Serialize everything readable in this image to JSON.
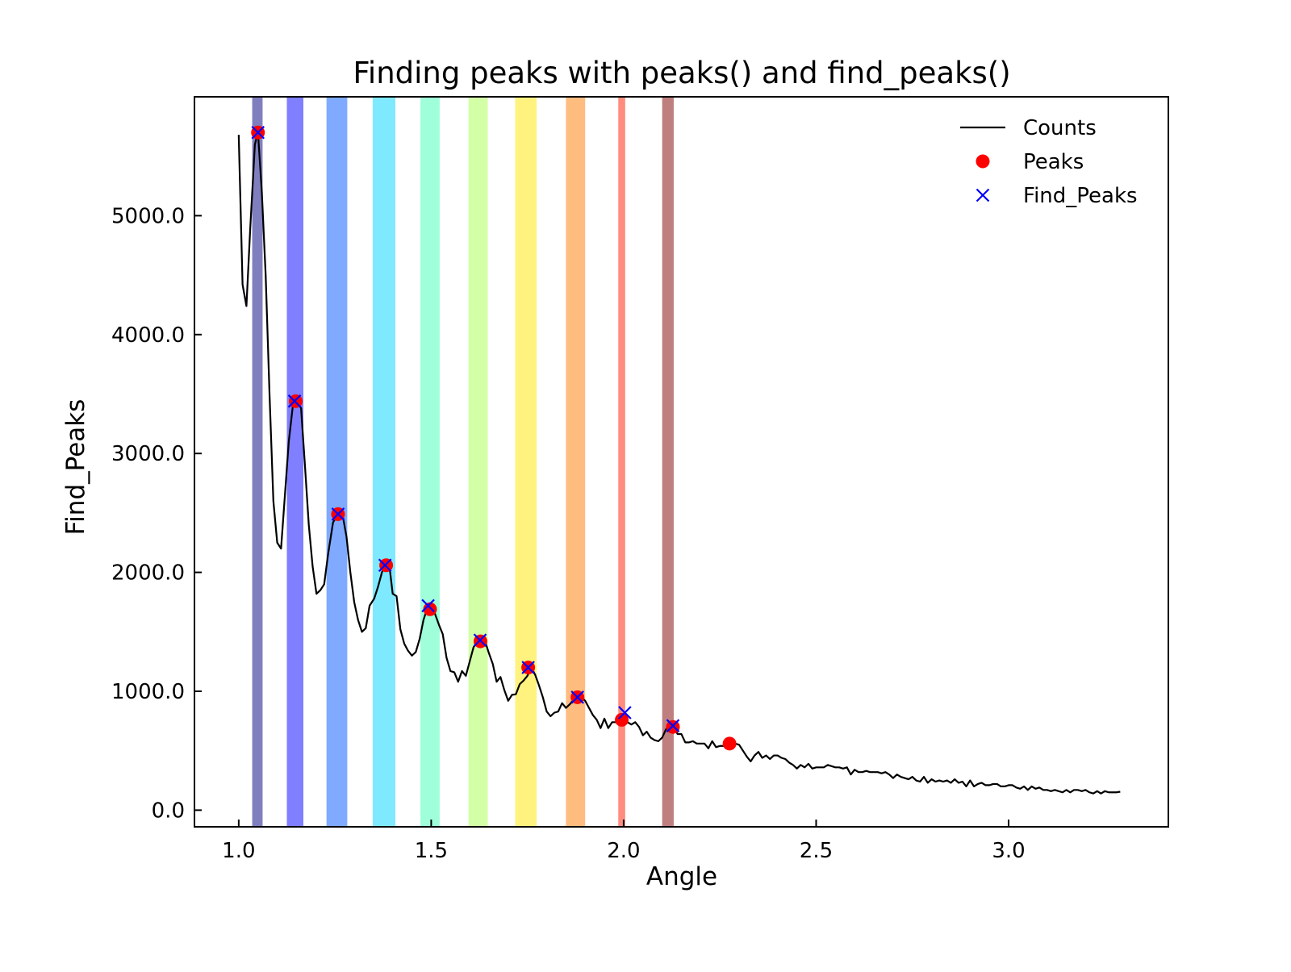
{
  "chart_data": {
    "type": "line",
    "title": "Finding peaks with peaks() and find_peaks()",
    "xlabel": "Angle",
    "ylabel": "Find_Peaks",
    "xlim": [
      0.885,
      3.415
    ],
    "ylim": [
      -140,
      6000
    ],
    "x_ticks": [
      1.0,
      1.5,
      2.0,
      2.5,
      3.0
    ],
    "x_tick_labels": [
      "1.0",
      "1.5",
      "2.0",
      "2.5",
      "3.0"
    ],
    "y_ticks": [
      0,
      1000,
      2000,
      3000,
      4000,
      5000
    ],
    "y_tick_labels": [
      "0.0",
      "1000.0",
      "2000.0",
      "3000.0",
      "4000.0",
      "5000.0"
    ],
    "grid": false,
    "legend_position": "top-right",
    "legend": [
      {
        "label": "Counts",
        "marker": "line",
        "color": "#000000"
      },
      {
        "label": "Peaks",
        "marker": "circle",
        "color": "#ff0000"
      },
      {
        "label": "Find_Peaks",
        "marker": "x",
        "color": "#0000ff"
      }
    ],
    "bands": [
      {
        "x0": 1.035,
        "x1": 1.062,
        "color": "#00007f",
        "opacity": 0.5
      },
      {
        "x0": 1.125,
        "x1": 1.168,
        "color": "#0000ff",
        "opacity": 0.5
      },
      {
        "x0": 1.228,
        "x1": 1.282,
        "color": "#0055ff",
        "opacity": 0.5
      },
      {
        "x0": 1.348,
        "x1": 1.407,
        "color": "#00d4ff",
        "opacity": 0.5
      },
      {
        "x0": 1.472,
        "x1": 1.522,
        "color": "#40ffb7",
        "opacity": 0.5
      },
      {
        "x0": 1.597,
        "x1": 1.647,
        "color": "#a8ff4d",
        "opacity": 0.5
      },
      {
        "x0": 1.718,
        "x1": 1.774,
        "color": "#ffe600",
        "opacity": 0.5
      },
      {
        "x0": 1.85,
        "x1": 1.9,
        "color": "#ff7a00",
        "opacity": 0.5
      },
      {
        "x0": 1.986,
        "x1": 2.004,
        "color": "#ff1a00",
        "opacity": 0.5
      },
      {
        "x0": 2.1,
        "x1": 2.13,
        "color": "#7f0000",
        "opacity": 0.5
      }
    ],
    "series": [
      {
        "name": "Counts",
        "type": "line",
        "color": "#000000",
        "points": [
          [
            1.0,
            5680
          ],
          [
            1.01,
            4420
          ],
          [
            1.02,
            4240
          ],
          [
            1.03,
            4900
          ],
          [
            1.042,
            5600
          ],
          [
            1.05,
            5700
          ],
          [
            1.06,
            5200
          ],
          [
            1.07,
            4500
          ],
          [
            1.08,
            3500
          ],
          [
            1.09,
            2600
          ],
          [
            1.1,
            2250
          ],
          [
            1.11,
            2200
          ],
          [
            1.12,
            2650
          ],
          [
            1.13,
            3100
          ],
          [
            1.142,
            3440
          ],
          [
            1.152,
            3440
          ],
          [
            1.162,
            3380
          ],
          [
            1.172,
            2900
          ],
          [
            1.182,
            2400
          ],
          [
            1.192,
            2050
          ],
          [
            1.202,
            1820
          ],
          [
            1.212,
            1850
          ],
          [
            1.222,
            1900
          ],
          [
            1.232,
            2150
          ],
          [
            1.245,
            2420
          ],
          [
            1.258,
            2490
          ],
          [
            1.27,
            2480
          ],
          [
            1.28,
            2300
          ],
          [
            1.29,
            2000
          ],
          [
            1.3,
            1750
          ],
          [
            1.31,
            1600
          ],
          [
            1.32,
            1500
          ],
          [
            1.33,
            1530
          ],
          [
            1.34,
            1720
          ],
          [
            1.352,
            1780
          ],
          [
            1.362,
            1880
          ],
          [
            1.372,
            2000
          ],
          [
            1.38,
            2060
          ],
          [
            1.392,
            2040
          ],
          [
            1.4,
            1820
          ],
          [
            1.41,
            1800
          ],
          [
            1.42,
            1520
          ],
          [
            1.43,
            1400
          ],
          [
            1.44,
            1340
          ],
          [
            1.45,
            1300
          ],
          [
            1.46,
            1330
          ],
          [
            1.47,
            1440
          ],
          [
            1.48,
            1600
          ],
          [
            1.49,
            1700
          ],
          [
            1.5,
            1690
          ],
          [
            1.51,
            1650
          ],
          [
            1.52,
            1560
          ],
          [
            1.53,
            1480
          ],
          [
            1.54,
            1280
          ],
          [
            1.55,
            1170
          ],
          [
            1.56,
            1160
          ],
          [
            1.57,
            1080
          ],
          [
            1.58,
            1170
          ],
          [
            1.59,
            1130
          ],
          [
            1.6,
            1250
          ],
          [
            1.61,
            1370
          ],
          [
            1.62,
            1420
          ],
          [
            1.63,
            1430
          ],
          [
            1.64,
            1420
          ],
          [
            1.65,
            1320
          ],
          [
            1.66,
            1230
          ],
          [
            1.67,
            1080
          ],
          [
            1.68,
            1120
          ],
          [
            1.69,
            1010
          ],
          [
            1.7,
            920
          ],
          [
            1.71,
            970
          ],
          [
            1.72,
            975
          ],
          [
            1.73,
            1060
          ],
          [
            1.74,
            1090
          ],
          [
            1.75,
            1130
          ],
          [
            1.76,
            1200
          ],
          [
            1.77,
            1140
          ],
          [
            1.78,
            1050
          ],
          [
            1.79,
            950
          ],
          [
            1.8,
            830
          ],
          [
            1.81,
            790
          ],
          [
            1.82,
            820
          ],
          [
            1.83,
            830
          ],
          [
            1.84,
            900
          ],
          [
            1.85,
            860
          ],
          [
            1.86,
            890
          ],
          [
            1.87,
            930
          ],
          [
            1.88,
            960
          ],
          [
            1.89,
            950
          ],
          [
            1.9,
            920
          ],
          [
            1.91,
            860
          ],
          [
            1.92,
            800
          ],
          [
            1.93,
            760
          ],
          [
            1.94,
            690
          ],
          [
            1.95,
            770
          ],
          [
            1.96,
            690
          ],
          [
            1.97,
            740
          ],
          [
            1.98,
            740
          ],
          [
            1.99,
            760
          ],
          [
            2.0,
            770
          ],
          [
            2.01,
            740
          ],
          [
            2.02,
            720
          ],
          [
            2.03,
            740
          ],
          [
            2.04,
            700
          ],
          [
            2.05,
            630
          ],
          [
            2.06,
            660
          ],
          [
            2.07,
            610
          ],
          [
            2.08,
            590
          ],
          [
            2.09,
            580
          ],
          [
            2.1,
            610
          ],
          [
            2.11,
            680
          ],
          [
            2.12,
            710
          ],
          [
            2.13,
            700
          ],
          [
            2.14,
            640
          ],
          [
            2.15,
            640
          ],
          [
            2.16,
            570
          ],
          [
            2.17,
            570
          ],
          [
            2.18,
            580
          ],
          [
            2.19,
            560
          ],
          [
            2.2,
            560
          ],
          [
            2.21,
            560
          ],
          [
            2.22,
            520
          ],
          [
            2.23,
            580
          ],
          [
            2.24,
            530
          ],
          [
            2.25,
            540
          ],
          [
            2.26,
            540
          ],
          [
            2.275,
            560
          ],
          [
            2.29,
            560
          ],
          [
            2.3,
            550
          ],
          [
            2.31,
            500
          ],
          [
            2.32,
            450
          ],
          [
            2.33,
            410
          ],
          [
            2.34,
            460
          ],
          [
            2.35,
            490
          ],
          [
            2.36,
            440
          ],
          [
            2.37,
            460
          ],
          [
            2.38,
            430
          ],
          [
            2.39,
            460
          ],
          [
            2.4,
            460
          ],
          [
            2.41,
            440
          ],
          [
            2.42,
            430
          ],
          [
            2.43,
            400
          ],
          [
            2.44,
            380
          ],
          [
            2.45,
            350
          ],
          [
            2.46,
            380
          ],
          [
            2.47,
            360
          ],
          [
            2.48,
            390
          ],
          [
            2.49,
            350
          ],
          [
            2.5,
            360
          ],
          [
            2.51,
            360
          ],
          [
            2.52,
            360
          ],
          [
            2.53,
            380
          ],
          [
            2.54,
            370
          ],
          [
            2.55,
            360
          ],
          [
            2.56,
            360
          ],
          [
            2.57,
            350
          ],
          [
            2.58,
            360
          ],
          [
            2.59,
            300
          ],
          [
            2.6,
            340
          ],
          [
            2.61,
            320
          ],
          [
            2.62,
            320
          ],
          [
            2.63,
            330
          ],
          [
            2.64,
            320
          ],
          [
            2.65,
            320
          ],
          [
            2.66,
            320
          ],
          [
            2.67,
            310
          ],
          [
            2.68,
            320
          ],
          [
            2.69,
            300
          ],
          [
            2.7,
            270
          ],
          [
            2.71,
            300
          ],
          [
            2.72,
            280
          ],
          [
            2.73,
            270
          ],
          [
            2.74,
            260
          ],
          [
            2.75,
            280
          ],
          [
            2.76,
            250
          ],
          [
            2.77,
            240
          ],
          [
            2.78,
            280
          ],
          [
            2.79,
            230
          ],
          [
            2.8,
            260
          ],
          [
            2.81,
            240
          ],
          [
            2.82,
            250
          ],
          [
            2.83,
            240
          ],
          [
            2.84,
            250
          ],
          [
            2.85,
            230
          ],
          [
            2.86,
            260
          ],
          [
            2.87,
            230
          ],
          [
            2.88,
            240
          ],
          [
            2.89,
            200
          ],
          [
            2.9,
            250
          ],
          [
            2.91,
            200
          ],
          [
            2.92,
            220
          ],
          [
            2.93,
            230
          ],
          [
            2.94,
            210
          ],
          [
            2.95,
            210
          ],
          [
            2.96,
            220
          ],
          [
            2.97,
            220
          ],
          [
            2.98,
            200
          ],
          [
            2.99,
            200
          ],
          [
            3.0,
            210
          ],
          [
            3.01,
            210
          ],
          [
            3.02,
            190
          ],
          [
            3.03,
            180
          ],
          [
            3.04,
            200
          ],
          [
            3.05,
            170
          ],
          [
            3.06,
            200
          ],
          [
            3.07,
            180
          ],
          [
            3.08,
            190
          ],
          [
            3.09,
            170
          ],
          [
            3.1,
            170
          ],
          [
            3.11,
            160
          ],
          [
            3.12,
            170
          ],
          [
            3.13,
            160
          ],
          [
            3.14,
            150
          ],
          [
            3.15,
            170
          ],
          [
            3.16,
            150
          ],
          [
            3.17,
            170
          ],
          [
            3.18,
            170
          ],
          [
            3.19,
            160
          ],
          [
            3.2,
            170
          ],
          [
            3.21,
            150
          ],
          [
            3.22,
            140
          ],
          [
            3.23,
            160
          ],
          [
            3.24,
            140
          ],
          [
            3.25,
            160
          ],
          [
            3.26,
            150
          ],
          [
            3.27,
            150
          ],
          [
            3.28,
            150
          ],
          [
            3.29,
            155
          ]
        ]
      },
      {
        "name": "Peaks",
        "type": "scatter",
        "marker": "circle",
        "color": "#ff0000",
        "points": [
          [
            1.05,
            5700
          ],
          [
            1.148,
            3440
          ],
          [
            1.258,
            2490
          ],
          [
            1.383,
            2060
          ],
          [
            1.497,
            1690
          ],
          [
            1.628,
            1420
          ],
          [
            1.752,
            1200
          ],
          [
            1.88,
            950
          ],
          [
            1.995,
            760
          ],
          [
            2.128,
            700
          ],
          [
            2.275,
            560
          ]
        ]
      },
      {
        "name": "Find_Peaks",
        "type": "scatter",
        "marker": "x",
        "color": "#0000ff",
        "points": [
          [
            1.05,
            5700
          ],
          [
            1.145,
            3440
          ],
          [
            1.258,
            2490
          ],
          [
            1.38,
            2060
          ],
          [
            1.492,
            1720
          ],
          [
            1.627,
            1430
          ],
          [
            1.752,
            1200
          ],
          [
            1.88,
            950
          ],
          [
            2.003,
            820
          ],
          [
            2.128,
            710
          ]
        ]
      }
    ]
  }
}
